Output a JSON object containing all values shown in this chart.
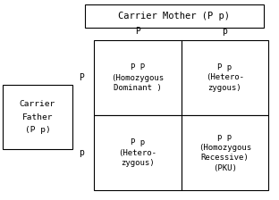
{
  "title": "Carrier Mother (P p)",
  "left_label_lines": [
    "Carrier",
    "Father",
    "(P p)"
  ],
  "col_headers": [
    "P",
    "p"
  ],
  "row_headers": [
    "P",
    "p"
  ],
  "cells": [
    [
      "P P\n(Homozygous\nDominant )",
      "P p\n(Hetero-\nzygous)"
    ],
    [
      "P p\n(Hetero-\nzygous)",
      "p p\n(Homozygous\nRecessive)\n(PKU)"
    ]
  ],
  "bg_color": "#ffffff",
  "text_color": "#000000",
  "box_color": "#000000",
  "font_size": 6.5,
  "header_font_size": 7,
  "title_font_size": 7.5,
  "father_font_size": 6.8
}
